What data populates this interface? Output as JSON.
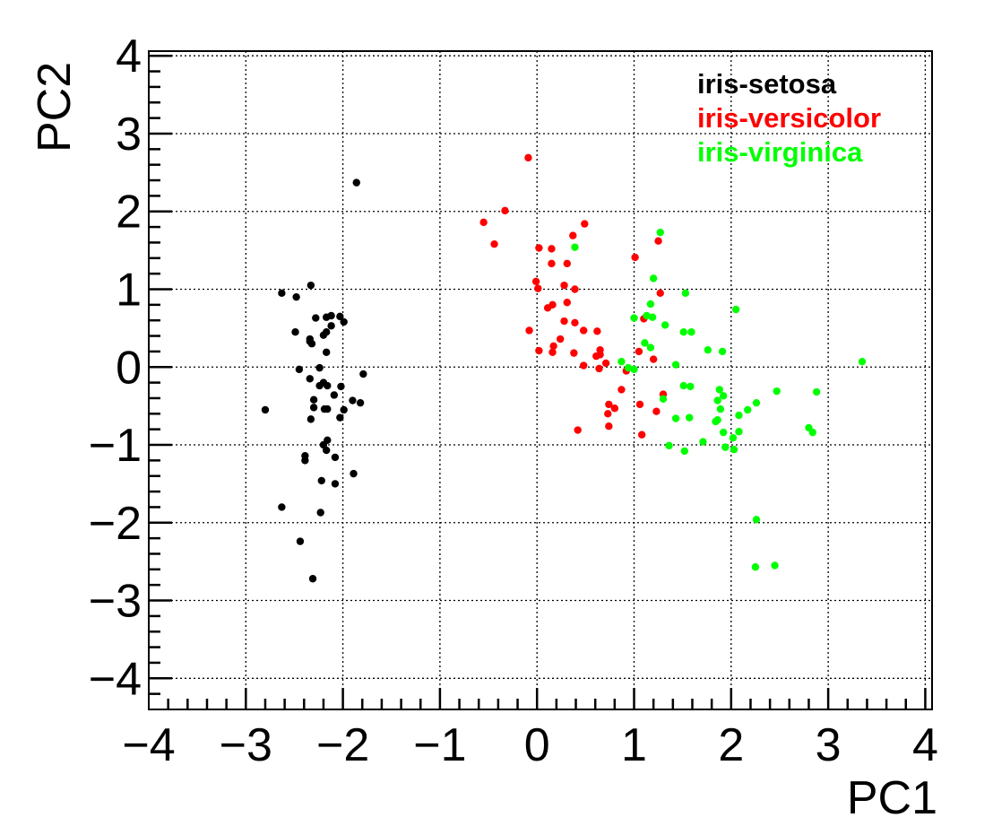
{
  "chart_data": {
    "type": "scatter",
    "title": "",
    "xlabel": "PC1",
    "ylabel": "PC2",
    "xlim": [
      -4,
      4.07
    ],
    "ylim": [
      -4.4,
      4.06
    ],
    "xticks": [
      -4,
      -3,
      -2,
      -1,
      0,
      1,
      2,
      3,
      4
    ],
    "yticks": [
      -4,
      -3,
      -2,
      -1,
      0,
      1,
      2,
      3,
      4
    ],
    "tick_labels_x": [
      "−4",
      "−3",
      "−2",
      "−1",
      "0",
      "1",
      "2",
      "3",
      "4"
    ],
    "tick_labels_y": [
      "−4",
      "−3",
      "−2",
      "−1",
      "0",
      "1",
      "2",
      "3",
      "4"
    ],
    "grid": true,
    "legend_position": "top-right",
    "series": [
      {
        "name": "iris-setosa",
        "color": "#000000",
        "points": [
          [
            -1.86,
            2.37
          ],
          [
            -2.33,
            1.05
          ],
          [
            -2.63,
            0.95
          ],
          [
            -2.48,
            0.9
          ],
          [
            -2.28,
            0.63
          ],
          [
            -2.17,
            0.64
          ],
          [
            -2.12,
            0.66
          ],
          [
            -2.03,
            0.65
          ],
          [
            -1.99,
            0.58
          ],
          [
            -2.12,
            0.53
          ],
          [
            -2.17,
            0.45
          ],
          [
            -2.2,
            0.41
          ],
          [
            -2.49,
            0.45
          ],
          [
            -2.34,
            0.36
          ],
          [
            -2.32,
            0.3
          ],
          [
            -2.34,
            0.33
          ],
          [
            -2.17,
            0.19
          ],
          [
            -2.45,
            -0.03
          ],
          [
            -2.24,
            -0.01
          ],
          [
            -1.79,
            -0.09
          ],
          [
            -2.34,
            -0.15
          ],
          [
            -2.24,
            -0.24
          ],
          [
            -2.2,
            -0.2
          ],
          [
            -2.16,
            -0.24
          ],
          [
            -2.02,
            -0.25
          ],
          [
            -2.09,
            -0.36
          ],
          [
            -2.3,
            -0.42
          ],
          [
            -1.9,
            -0.43
          ],
          [
            -1.82,
            -0.46
          ],
          [
            -2.8,
            -0.55
          ],
          [
            -2.3,
            -0.52
          ],
          [
            -2.19,
            -0.54
          ],
          [
            -2.16,
            -0.54
          ],
          [
            -1.99,
            -0.55
          ],
          [
            -2.33,
            -0.67
          ],
          [
            -2.03,
            -0.65
          ],
          [
            -2.16,
            -0.94
          ],
          [
            -2.2,
            -1.0
          ],
          [
            -2.17,
            -1.07
          ],
          [
            -2.39,
            -1.14
          ],
          [
            -2.39,
            -1.2
          ],
          [
            -2.08,
            -1.16
          ],
          [
            -1.89,
            -1.37
          ],
          [
            -2.22,
            -1.46
          ],
          [
            -2.08,
            -1.5
          ],
          [
            -2.63,
            -1.8
          ],
          [
            -2.23,
            -1.87
          ],
          [
            -2.44,
            -2.24
          ],
          [
            -2.31,
            -2.72
          ]
        ]
      },
      {
        "name": "iris-versicolor",
        "color": "#ff0000",
        "points": [
          [
            -0.09,
            2.69
          ],
          [
            -0.33,
            2.01
          ],
          [
            -0.55,
            1.86
          ],
          [
            0.49,
            1.84
          ],
          [
            0.37,
            1.69
          ],
          [
            -0.44,
            1.58
          ],
          [
            0.02,
            1.53
          ],
          [
            0.15,
            1.52
          ],
          [
            1.25,
            1.62
          ],
          [
            1.01,
            1.41
          ],
          [
            0.15,
            1.33
          ],
          [
            0.31,
            1.33
          ],
          [
            -0.01,
            1.1
          ],
          [
            0.01,
            1.01
          ],
          [
            0.28,
            1.05
          ],
          [
            0.39,
            1.0
          ],
          [
            1.27,
            0.95
          ],
          [
            0.11,
            0.76
          ],
          [
            0.16,
            0.8
          ],
          [
            0.31,
            0.83
          ],
          [
            1.1,
            0.62
          ],
          [
            -0.08,
            0.47
          ],
          [
            0.28,
            0.59
          ],
          [
            0.39,
            0.57
          ],
          [
            0.48,
            0.47
          ],
          [
            0.62,
            0.46
          ],
          [
            0.24,
            0.36
          ],
          [
            0.17,
            0.27
          ],
          [
            0.02,
            0.21
          ],
          [
            0.16,
            0.19
          ],
          [
            0.38,
            0.18
          ],
          [
            0.65,
            0.22
          ],
          [
            0.65,
            0.16
          ],
          [
            0.61,
            0.14
          ],
          [
            1.05,
            0.2
          ],
          [
            1.2,
            0.1
          ],
          [
            0.71,
            0.05
          ],
          [
            0.48,
            0.02
          ],
          [
            0.64,
            -0.02
          ],
          [
            0.92,
            -0.05
          ],
          [
            0.87,
            -0.29
          ],
          [
            1.3,
            -0.35
          ],
          [
            0.74,
            -0.48
          ],
          [
            0.8,
            -0.53
          ],
          [
            0.73,
            -0.6
          ],
          [
            0.74,
            -0.76
          ],
          [
            1.06,
            -0.48
          ],
          [
            1.23,
            -0.57
          ],
          [
            0.42,
            -0.81
          ],
          [
            1.08,
            -0.87
          ]
        ]
      },
      {
        "name": "iris-virginica",
        "color": "#00ff00",
        "points": [
          [
            1.27,
            1.73
          ],
          [
            0.39,
            1.54
          ],
          [
            1.2,
            1.14
          ],
          [
            1.17,
            0.81
          ],
          [
            1.0,
            0.63
          ],
          [
            1.13,
            0.66
          ],
          [
            1.19,
            0.64
          ],
          [
            1.32,
            0.54
          ],
          [
            1.11,
            0.31
          ],
          [
            1.17,
            0.25
          ],
          [
            0.87,
            0.07
          ],
          [
            0.94,
            -0.01
          ],
          [
            1.0,
            -0.03
          ],
          [
            1.43,
            0.03
          ],
          [
            1.3,
            -0.41
          ],
          [
            1.43,
            -0.66
          ],
          [
            1.36,
            -1.01
          ],
          [
            1.53,
            0.95
          ],
          [
            2.05,
            0.74
          ],
          [
            1.51,
            0.45
          ],
          [
            1.59,
            0.45
          ],
          [
            1.76,
            0.22
          ],
          [
            1.91,
            0.2
          ],
          [
            3.35,
            0.07
          ],
          [
            1.51,
            -0.24
          ],
          [
            1.58,
            -0.25
          ],
          [
            1.88,
            -0.29
          ],
          [
            1.92,
            -0.37
          ],
          [
            1.86,
            -0.43
          ],
          [
            1.89,
            -0.54
          ],
          [
            2.47,
            -0.31
          ],
          [
            2.88,
            -0.32
          ],
          [
            2.26,
            -0.46
          ],
          [
            2.17,
            -0.55
          ],
          [
            2.08,
            -0.62
          ],
          [
            1.57,
            -0.65
          ],
          [
            1.84,
            -0.7
          ],
          [
            1.86,
            -0.68
          ],
          [
            2.8,
            -0.78
          ],
          [
            2.84,
            -0.84
          ],
          [
            1.92,
            -0.84
          ],
          [
            2.08,
            -0.83
          ],
          [
            2.02,
            -0.91
          ],
          [
            1.71,
            -0.96
          ],
          [
            1.52,
            -1.08
          ],
          [
            1.94,
            -1.03
          ],
          [
            2.03,
            -1.06
          ],
          [
            2.26,
            -1.96
          ],
          [
            2.25,
            -2.57
          ],
          [
            2.45,
            -2.55
          ]
        ]
      }
    ]
  }
}
